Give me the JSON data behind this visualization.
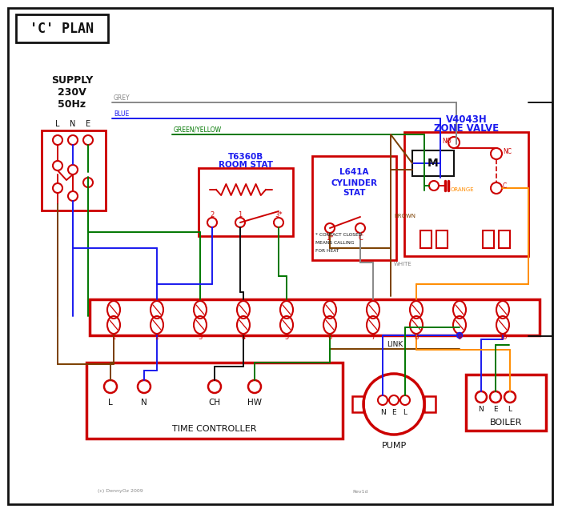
{
  "title": "'C' PLAN",
  "bg_color": "#ffffff",
  "red": "#cc0000",
  "blue": "#1a1aee",
  "green": "#007700",
  "grey": "#888888",
  "brown": "#7B3F00",
  "black": "#111111",
  "orange": "#FF8C00",
  "supply_text": "SUPPLY\n230V\n50Hz",
  "room_stat_label1": "T6360B",
  "room_stat_label2": "ROOM STAT",
  "cyl_stat_label1": "L641A",
  "cyl_stat_label2": "CYLINDER",
  "cyl_stat_label3": "STAT",
  "zone_valve_label1": "V4043H",
  "zone_valve_label2": "ZONE VALVE",
  "time_ctrl_label": "TIME CONTROLLER",
  "pump_label": "PUMP",
  "boiler_label": "BOILER",
  "link_label": "LINK",
  "copyright": "(c) DennyOz 2009",
  "rev": "Rev1d"
}
